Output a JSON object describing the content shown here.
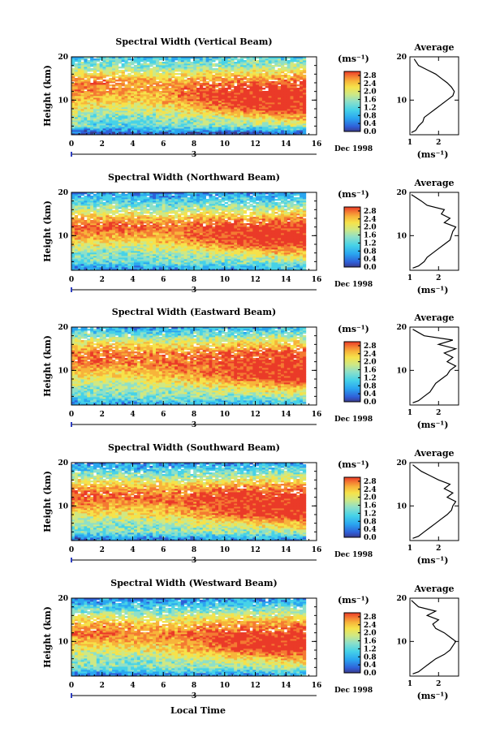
{
  "figure": {
    "shared_xlabel": "Local Time",
    "date_label": "Dec 1998",
    "day_label": "3",
    "colorbar_unit": "(ms⁻¹)",
    "colorbar_ticks": [
      "0.0",
      "0.4",
      "0.8",
      "1.2",
      "1.6",
      "2.0",
      "2.4",
      "2.8"
    ],
    "profile_title": "Average",
    "profile_unit": "(ms⁻¹)",
    "palette": [
      "#3a3a8c",
      "#2f5fd8",
      "#2aa6f0",
      "#46d2e8",
      "#8ee0c8",
      "#cfe884",
      "#f6e24a",
      "#f7b43a",
      "#f47a32",
      "#ea3a28"
    ]
  },
  "chart_data": [
    {
      "type": "heatmap",
      "title": "Spectral Width (Vertical Beam)",
      "ylabel": "Height (km)",
      "xlabel": "Local Time",
      "x_ticks": [
        "0",
        "2",
        "4",
        "6",
        "8",
        "10",
        "12",
        "14",
        "16"
      ],
      "y_ticks": [
        "10",
        "20"
      ],
      "xlim": [
        0,
        16
      ],
      "ylim": [
        2,
        20
      ],
      "data_xlim": [
        0,
        15.3
      ],
      "colorbar": {
        "ticks": [
          0.0,
          0.4,
          0.8,
          1.2,
          1.6,
          2.0,
          2.4,
          2.8
        ],
        "range": [
          0.0,
          3.0
        ]
      },
      "bands": [
        {
          "h": 2.5,
          "v": [
            0.3,
            0.4,
            0.4,
            0.5,
            0.4,
            0.4,
            0.5,
            0.5
          ]
        },
        {
          "h": 4,
          "v": [
            1.4,
            1.1,
            1.2,
            1.3,
            1.3,
            1.3,
            1.4,
            1.5
          ]
        },
        {
          "h": 6,
          "v": [
            1.4,
            1.3,
            1.3,
            1.5,
            1.6,
            1.8,
            2.1,
            2.3
          ]
        },
        {
          "h": 8,
          "v": [
            1.9,
            1.7,
            1.7,
            1.9,
            2.3,
            2.7,
            2.9,
            2.9
          ]
        },
        {
          "h": 10,
          "v": [
            2.2,
            2.1,
            2.1,
            2.3,
            2.7,
            2.9,
            3.0,
            3.0
          ]
        },
        {
          "h": 12,
          "v": [
            2.4,
            2.4,
            2.3,
            2.4,
            2.8,
            3.0,
            3.0,
            3.0
          ]
        },
        {
          "h": 14,
          "v": [
            2.5,
            2.6,
            2.4,
            2.4,
            2.5,
            2.6,
            2.6,
            2.7
          ]
        },
        {
          "h": 16,
          "v": [
            1.9,
            2.0,
            1.9,
            1.8,
            2.0,
            2.1,
            2.1,
            2.2
          ]
        },
        {
          "h": 18,
          "v": [
            1.4,
            1.3,
            1.3,
            1.3,
            1.4,
            1.4,
            1.5,
            1.5
          ]
        },
        {
          "h": 20,
          "v": [
            1.0,
            1.1,
            1.0,
            1.0,
            1.0,
            1.1,
            1.1,
            1.1
          ]
        }
      ]
    },
    {
      "type": "line",
      "title": "Average",
      "xlabel": "(ms⁻¹)",
      "x_ticks": [
        "1",
        "2"
      ],
      "y_ticks": [
        "10",
        "20"
      ],
      "xlim": [
        1,
        2.7
      ],
      "ylim": [
        2,
        20
      ],
      "series": [
        {
          "x": [
            1.05,
            1.2,
            1.3,
            1.45,
            1.5,
            1.7,
            1.9,
            2.1,
            2.3,
            2.5,
            2.55,
            2.45,
            2.3,
            2.1,
            1.9,
            1.6,
            1.3,
            1.15
          ],
          "y": [
            2.5,
            3,
            4,
            5,
            6,
            7,
            8,
            9,
            10,
            11,
            12,
            13,
            14,
            15,
            16,
            17,
            18,
            19.5
          ]
        }
      ]
    },
    {
      "type": "heatmap",
      "title": "Spectral Width (Northward Beam)",
      "ylabel": "Height (km)",
      "xlabel": "Local Time",
      "x_ticks": [
        "0",
        "2",
        "4",
        "6",
        "8",
        "10",
        "12",
        "14",
        "16"
      ],
      "y_ticks": [
        "10",
        "20"
      ],
      "xlim": [
        0,
        16
      ],
      "ylim": [
        2,
        20
      ],
      "data_xlim": [
        0,
        15.3
      ],
      "colorbar": {
        "ticks": [
          0.0,
          0.4,
          0.8,
          1.2,
          1.6,
          2.0,
          2.4,
          2.8
        ],
        "range": [
          0.0,
          3.0
        ]
      },
      "bands": [
        {
          "h": 2.5,
          "v": [
            0.6,
            0.7,
            0.7,
            0.8,
            0.8,
            0.8,
            0.9,
            0.9
          ]
        },
        {
          "h": 4,
          "v": [
            1.2,
            1.2,
            1.2,
            1.3,
            1.3,
            1.3,
            1.4,
            1.4
          ]
        },
        {
          "h": 6,
          "v": [
            1.3,
            1.4,
            1.4,
            1.5,
            1.6,
            1.8,
            2.1,
            2.3
          ]
        },
        {
          "h": 8,
          "v": [
            1.8,
            1.8,
            1.8,
            2.0,
            2.3,
            2.7,
            2.9,
            2.9
          ]
        },
        {
          "h": 10,
          "v": [
            2.3,
            2.3,
            2.3,
            2.4,
            2.7,
            2.9,
            3.0,
            3.0
          ]
        },
        {
          "h": 12,
          "v": [
            2.8,
            2.7,
            2.7,
            2.6,
            2.8,
            2.9,
            2.9,
            2.9
          ]
        },
        {
          "h": 14,
          "v": [
            2.2,
            2.3,
            2.2,
            2.1,
            2.3,
            2.4,
            2.4,
            2.5
          ]
        },
        {
          "h": 16,
          "v": [
            1.6,
            1.6,
            1.6,
            1.5,
            1.6,
            1.7,
            1.7,
            1.8
          ]
        },
        {
          "h": 18,
          "v": [
            1.1,
            1.1,
            1.0,
            1.0,
            1.1,
            1.1,
            1.1,
            1.2
          ]
        },
        {
          "h": 20,
          "v": [
            0.6,
            0.7,
            0.6,
            0.6,
            0.7,
            0.7,
            0.7,
            0.8
          ]
        }
      ]
    },
    {
      "type": "line",
      "title": "Average",
      "xlabel": "(ms⁻¹)",
      "x_ticks": [
        "1",
        "2"
      ],
      "y_ticks": [
        "10",
        "20"
      ],
      "xlim": [
        1,
        2.7
      ],
      "ylim": [
        2,
        20
      ],
      "series": [
        {
          "x": [
            1.1,
            1.3,
            1.5,
            1.6,
            1.8,
            2.0,
            2.2,
            2.4,
            2.45,
            2.5,
            2.6,
            2.2,
            2.4,
            2.1,
            2.2,
            1.6,
            1.4,
            1.05
          ],
          "y": [
            2.5,
            3,
            4,
            5,
            6,
            7,
            8,
            9,
            10,
            11,
            12,
            13,
            14,
            15,
            16,
            17,
            18,
            19.5
          ]
        }
      ]
    },
    {
      "type": "heatmap",
      "title": "Spectral Width (Eastward Beam)",
      "ylabel": "Height (km)",
      "xlabel": "Local Time",
      "x_ticks": [
        "0",
        "2",
        "4",
        "6",
        "8",
        "10",
        "12",
        "14",
        "16"
      ],
      "y_ticks": [
        "10",
        "20"
      ],
      "xlim": [
        0,
        16
      ],
      "ylim": [
        2,
        20
      ],
      "data_xlim": [
        0,
        15.3
      ],
      "colorbar": {
        "ticks": [
          0.0,
          0.4,
          0.8,
          1.2,
          1.6,
          2.0,
          2.4,
          2.8
        ],
        "range": [
          0.0,
          3.0
        ]
      },
      "bands": [
        {
          "h": 2.5,
          "v": [
            0.7,
            0.8,
            0.8,
            0.9,
            0.9,
            0.9,
            1.0,
            1.0
          ]
        },
        {
          "h": 4,
          "v": [
            1.3,
            1.3,
            1.3,
            1.4,
            1.4,
            1.4,
            1.5,
            1.5
          ]
        },
        {
          "h": 6,
          "v": [
            1.4,
            1.4,
            1.5,
            1.6,
            1.7,
            1.9,
            2.1,
            2.2
          ]
        },
        {
          "h": 8,
          "v": [
            1.8,
            1.8,
            1.9,
            2.0,
            2.3,
            2.6,
            2.8,
            2.9
          ]
        },
        {
          "h": 10,
          "v": [
            2.2,
            2.2,
            2.2,
            2.4,
            2.6,
            2.8,
            2.9,
            3.0
          ]
        },
        {
          "h": 12,
          "v": [
            2.6,
            2.6,
            2.5,
            2.6,
            2.7,
            2.8,
            2.8,
            2.8
          ]
        },
        {
          "h": 14,
          "v": [
            2.5,
            2.6,
            2.5,
            2.4,
            2.6,
            2.7,
            2.8,
            2.8
          ]
        },
        {
          "h": 16,
          "v": [
            2.0,
            2.1,
            2.0,
            1.9,
            2.0,
            2.1,
            2.1,
            2.2
          ]
        },
        {
          "h": 18,
          "v": [
            1.4,
            1.4,
            1.3,
            1.3,
            1.4,
            1.4,
            1.5,
            1.5
          ]
        },
        {
          "h": 20,
          "v": [
            0.8,
            0.8,
            0.7,
            0.7,
            0.8,
            0.8,
            0.8,
            0.9
          ]
        }
      ]
    },
    {
      "type": "line",
      "title": "Average",
      "xlabel": "(ms⁻¹)",
      "x_ticks": [
        "1",
        "2"
      ],
      "y_ticks": [
        "10",
        "20"
      ],
      "xlim": [
        1,
        2.7
      ],
      "ylim": [
        2,
        20
      ],
      "series": [
        {
          "x": [
            1.1,
            1.3,
            1.5,
            1.7,
            1.8,
            1.9,
            2.1,
            2.3,
            2.4,
            2.6,
            2.3,
            2.5,
            2.2,
            2.6,
            2.0,
            2.5,
            1.5,
            1.1
          ],
          "y": [
            2.5,
            3,
            4,
            5,
            6,
            7,
            8,
            9,
            10,
            11,
            12,
            13,
            14,
            15,
            16,
            17,
            18,
            19.5
          ]
        }
      ]
    },
    {
      "type": "heatmap",
      "title": "Spectral Width (Southward Beam)",
      "ylabel": "Height (km)",
      "xlabel": "Local Time",
      "x_ticks": [
        "0",
        "2",
        "4",
        "6",
        "8",
        "10",
        "12",
        "14",
        "16"
      ],
      "y_ticks": [
        "10",
        "20"
      ],
      "xlim": [
        0,
        16
      ],
      "ylim": [
        2,
        20
      ],
      "data_xlim": [
        0,
        15.3
      ],
      "colorbar": {
        "ticks": [
          0.0,
          0.4,
          0.8,
          1.2,
          1.6,
          2.0,
          2.4,
          2.8
        ],
        "range": [
          0.0,
          3.0
        ]
      },
      "bands": [
        {
          "h": 2.5,
          "v": [
            0.5,
            0.6,
            0.6,
            0.7,
            0.7,
            0.7,
            0.8,
            0.8
          ]
        },
        {
          "h": 4,
          "v": [
            1.3,
            1.3,
            1.3,
            1.4,
            1.4,
            1.4,
            1.5,
            1.5
          ]
        },
        {
          "h": 6,
          "v": [
            1.4,
            1.4,
            1.4,
            1.6,
            1.7,
            1.9,
            2.1,
            2.3
          ]
        },
        {
          "h": 8,
          "v": [
            1.9,
            1.9,
            1.9,
            2.0,
            2.4,
            2.7,
            2.9,
            2.9
          ]
        },
        {
          "h": 10,
          "v": [
            2.3,
            2.3,
            2.2,
            2.4,
            2.7,
            2.9,
            3.0,
            3.0
          ]
        },
        {
          "h": 12,
          "v": [
            2.7,
            2.7,
            2.6,
            2.6,
            2.8,
            2.9,
            2.9,
            2.9
          ]
        },
        {
          "h": 14,
          "v": [
            2.4,
            2.4,
            2.3,
            2.3,
            2.5,
            2.6,
            2.6,
            2.7
          ]
        },
        {
          "h": 16,
          "v": [
            1.8,
            1.8,
            1.8,
            1.7,
            1.8,
            1.9,
            1.9,
            2.0
          ]
        },
        {
          "h": 18,
          "v": [
            1.2,
            1.2,
            1.1,
            1.1,
            1.2,
            1.2,
            1.3,
            1.3
          ]
        },
        {
          "h": 20,
          "v": [
            0.7,
            0.7,
            0.6,
            0.6,
            0.7,
            0.7,
            0.7,
            0.8
          ]
        }
      ]
    },
    {
      "type": "line",
      "title": "Average",
      "xlabel": "(ms⁻¹)",
      "x_ticks": [
        "1",
        "2"
      ],
      "y_ticks": [
        "10",
        "20"
      ],
      "xlim": [
        1,
        2.7
      ],
      "ylim": [
        2,
        20
      ],
      "series": [
        {
          "x": [
            1.1,
            1.3,
            1.5,
            1.7,
            1.9,
            2.1,
            2.3,
            2.45,
            2.5,
            2.6,
            2.3,
            2.5,
            2.2,
            2.4,
            2.0,
            1.7,
            1.4,
            1.1
          ],
          "y": [
            2.5,
            3,
            4,
            5,
            6,
            7,
            8,
            9,
            10,
            11,
            12,
            13,
            14,
            15,
            16,
            17,
            18,
            19.5
          ]
        }
      ]
    },
    {
      "type": "heatmap",
      "title": "Spectral Width (Westward Beam)",
      "ylabel": "Height (km)",
      "xlabel": "Local Time",
      "x_ticks": [
        "0",
        "2",
        "4",
        "6",
        "8",
        "10",
        "12",
        "14",
        "16"
      ],
      "y_ticks": [
        "10",
        "20"
      ],
      "xlim": [
        0,
        16
      ],
      "ylim": [
        2,
        20
      ],
      "data_xlim": [
        0,
        15.3
      ],
      "colorbar": {
        "ticks": [
          0.0,
          0.4,
          0.8,
          1.2,
          1.6,
          2.0,
          2.4,
          2.8
        ],
        "range": [
          0.0,
          3.0
        ]
      },
      "bands": [
        {
          "h": 2.5,
          "v": [
            0.6,
            0.7,
            0.7,
            0.8,
            0.8,
            0.8,
            0.9,
            0.9
          ]
        },
        {
          "h": 4,
          "v": [
            1.3,
            1.3,
            1.3,
            1.4,
            1.4,
            1.4,
            1.5,
            1.5
          ]
        },
        {
          "h": 6,
          "v": [
            1.4,
            1.4,
            1.4,
            1.6,
            1.7,
            1.9,
            2.1,
            2.3
          ]
        },
        {
          "h": 8,
          "v": [
            1.8,
            1.8,
            1.8,
            2.0,
            2.3,
            2.7,
            2.9,
            2.9
          ]
        },
        {
          "h": 10,
          "v": [
            2.2,
            2.2,
            2.2,
            2.3,
            2.6,
            2.9,
            3.0,
            3.0
          ]
        },
        {
          "h": 12,
          "v": [
            2.6,
            2.6,
            2.5,
            2.5,
            2.7,
            2.8,
            2.8,
            2.8
          ]
        },
        {
          "h": 14,
          "v": [
            2.2,
            2.3,
            2.2,
            2.1,
            2.3,
            2.4,
            2.4,
            2.5
          ]
        },
        {
          "h": 16,
          "v": [
            1.7,
            1.7,
            1.6,
            1.6,
            1.7,
            1.8,
            1.8,
            1.9
          ]
        },
        {
          "h": 18,
          "v": [
            1.1,
            1.1,
            1.0,
            1.0,
            1.1,
            1.1,
            1.2,
            1.2
          ]
        },
        {
          "h": 20,
          "v": [
            0.6,
            0.6,
            0.6,
            0.6,
            0.6,
            0.7,
            0.7,
            0.7
          ]
        }
      ]
    },
    {
      "type": "line",
      "title": "Average",
      "xlabel": "(ms⁻¹)",
      "x_ticks": [
        "1",
        "2"
      ],
      "y_ticks": [
        "10",
        "20"
      ],
      "xlim": [
        1,
        2.7
      ],
      "ylim": [
        2,
        20
      ],
      "series": [
        {
          "x": [
            1.1,
            1.3,
            1.5,
            1.7,
            1.9,
            2.2,
            2.4,
            2.5,
            2.6,
            2.4,
            2.2,
            1.9,
            1.8,
            2.0,
            1.6,
            1.9,
            1.3,
            1.05
          ],
          "y": [
            2.5,
            3,
            4,
            5,
            6,
            7,
            8,
            9,
            10,
            11,
            12,
            13,
            14,
            15,
            16,
            17,
            18,
            19.5
          ]
        }
      ]
    }
  ]
}
